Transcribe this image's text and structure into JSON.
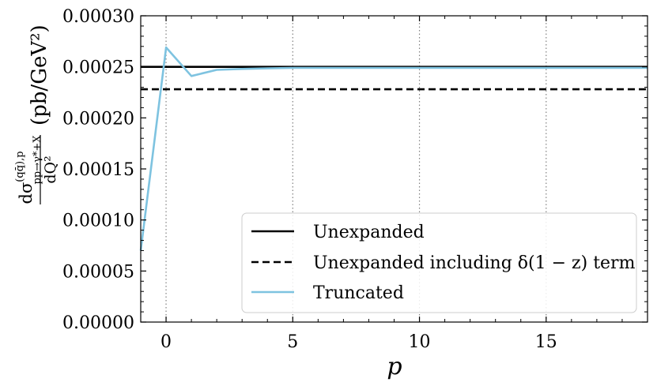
{
  "chart_data": {
    "type": "line",
    "title": "",
    "xlabel": "p",
    "ylabel": "dσ^{(qq̄),p}_{pp→γ*+X} / dQ² (pb/GeV²)",
    "ylabel_parts": {
      "numerator": "dσ",
      "superscript": "(qq̄),p",
      "subscript": "pp→γ*+X",
      "denominator": "dQ²",
      "unit": "(pb/GeV²)"
    },
    "xlim": [
      -1,
      19
    ],
    "ylim": [
      0,
      0.0003
    ],
    "xticks": [
      0,
      5,
      10,
      15
    ],
    "xtick_labels": [
      "0",
      "5",
      "10",
      "15"
    ],
    "yticks": [
      0,
      5e-05,
      0.0001,
      0.00015,
      0.0002,
      0.00025,
      0.0003
    ],
    "ytick_labels": [
      "0.00000",
      "0.00005",
      "0.00010",
      "0.00015",
      "0.00020",
      "0.00025",
      "0.00030"
    ],
    "grid": {
      "vertical_dotted_at": [
        0,
        5,
        10,
        15
      ]
    },
    "legend_position": "lower-right",
    "series": [
      {
        "name": "Unexpanded",
        "style": "solid",
        "color": "#000000",
        "x": [
          -1,
          19
        ],
        "y": [
          0.00025,
          0.00025
        ]
      },
      {
        "name": "Unexpanded including δ(1 − z) term",
        "style": "dashed",
        "color": "#000000",
        "x": [
          -1,
          19
        ],
        "y": [
          0.000228,
          0.000228
        ]
      },
      {
        "name": "Truncated",
        "style": "solid",
        "color": "#7ec3e0",
        "x": [
          -1,
          0,
          1,
          2,
          3,
          4,
          5,
          6,
          7,
          8,
          9,
          10,
          11,
          12,
          13,
          14,
          15,
          16,
          17,
          18,
          19
        ],
        "y": [
          7e-05,
          0.000269,
          0.000241,
          0.000247,
          0.000248,
          0.0002485,
          0.000249,
          0.000249,
          0.000249,
          0.000249,
          0.000249,
          0.000249,
          0.000249,
          0.000249,
          0.000249,
          0.000249,
          0.000249,
          0.000249,
          0.000249,
          0.000249,
          0.000249
        ]
      }
    ]
  }
}
